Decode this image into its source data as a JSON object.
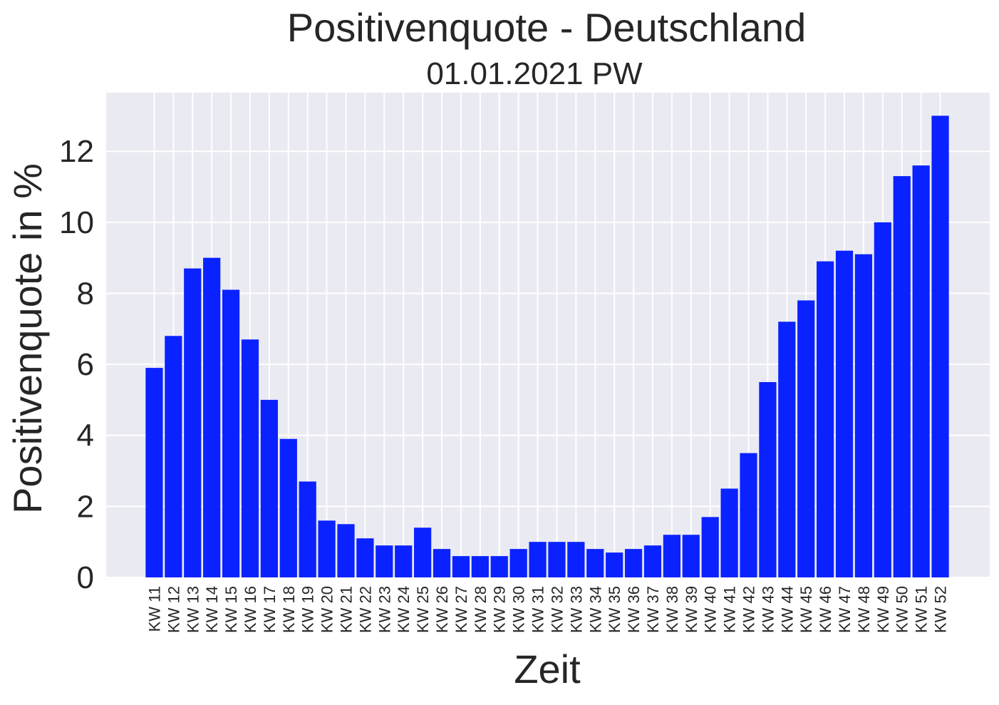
{
  "chart_data": {
    "type": "bar",
    "title": "Positivenquote - Deutschland",
    "subtitle": "01.01.2021 PW",
    "xlabel": "Zeit",
    "ylabel": "Positivenquote in %",
    "ylim": [
      0,
      13.65
    ],
    "yticks": [
      0,
      2,
      4,
      6,
      8,
      10,
      12
    ],
    "grid": true,
    "bar_color": "#0a22ff",
    "background_color": "#eaeaf2",
    "grid_color": "#ffffff",
    "categories": [
      "KW 11",
      "KW 12",
      "KW 13",
      "KW 14",
      "KW 15",
      "KW 16",
      "KW 17",
      "KW 18",
      "KW 19",
      "KW 20",
      "KW 21",
      "KW 22",
      "KW 23",
      "KW 24",
      "KW 25",
      "KW 26",
      "KW 27",
      "KW 28",
      "KW 29",
      "KW 30",
      "KW 31",
      "KW 32",
      "KW 33",
      "KW 34",
      "KW 35",
      "KW 36",
      "KW 37",
      "KW 38",
      "KW 39",
      "KW 40",
      "KW 41",
      "KW 42",
      "KW 43",
      "KW 44",
      "KW 45",
      "KW 46",
      "KW 47",
      "KW 48",
      "KW 49",
      "KW 50",
      "KW 51",
      "KW 52"
    ],
    "values": [
      5.9,
      6.8,
      8.7,
      9.0,
      8.1,
      6.7,
      5.0,
      3.9,
      2.7,
      1.6,
      1.5,
      1.1,
      0.9,
      0.9,
      1.4,
      0.8,
      0.6,
      0.6,
      0.6,
      0.8,
      1.0,
      1.0,
      1.0,
      0.8,
      0.7,
      0.8,
      0.9,
      1.2,
      1.2,
      1.7,
      2.5,
      3.5,
      5.5,
      7.2,
      7.8,
      8.9,
      9.2,
      9.1,
      10.0,
      11.3,
      11.6,
      13.0
    ]
  }
}
